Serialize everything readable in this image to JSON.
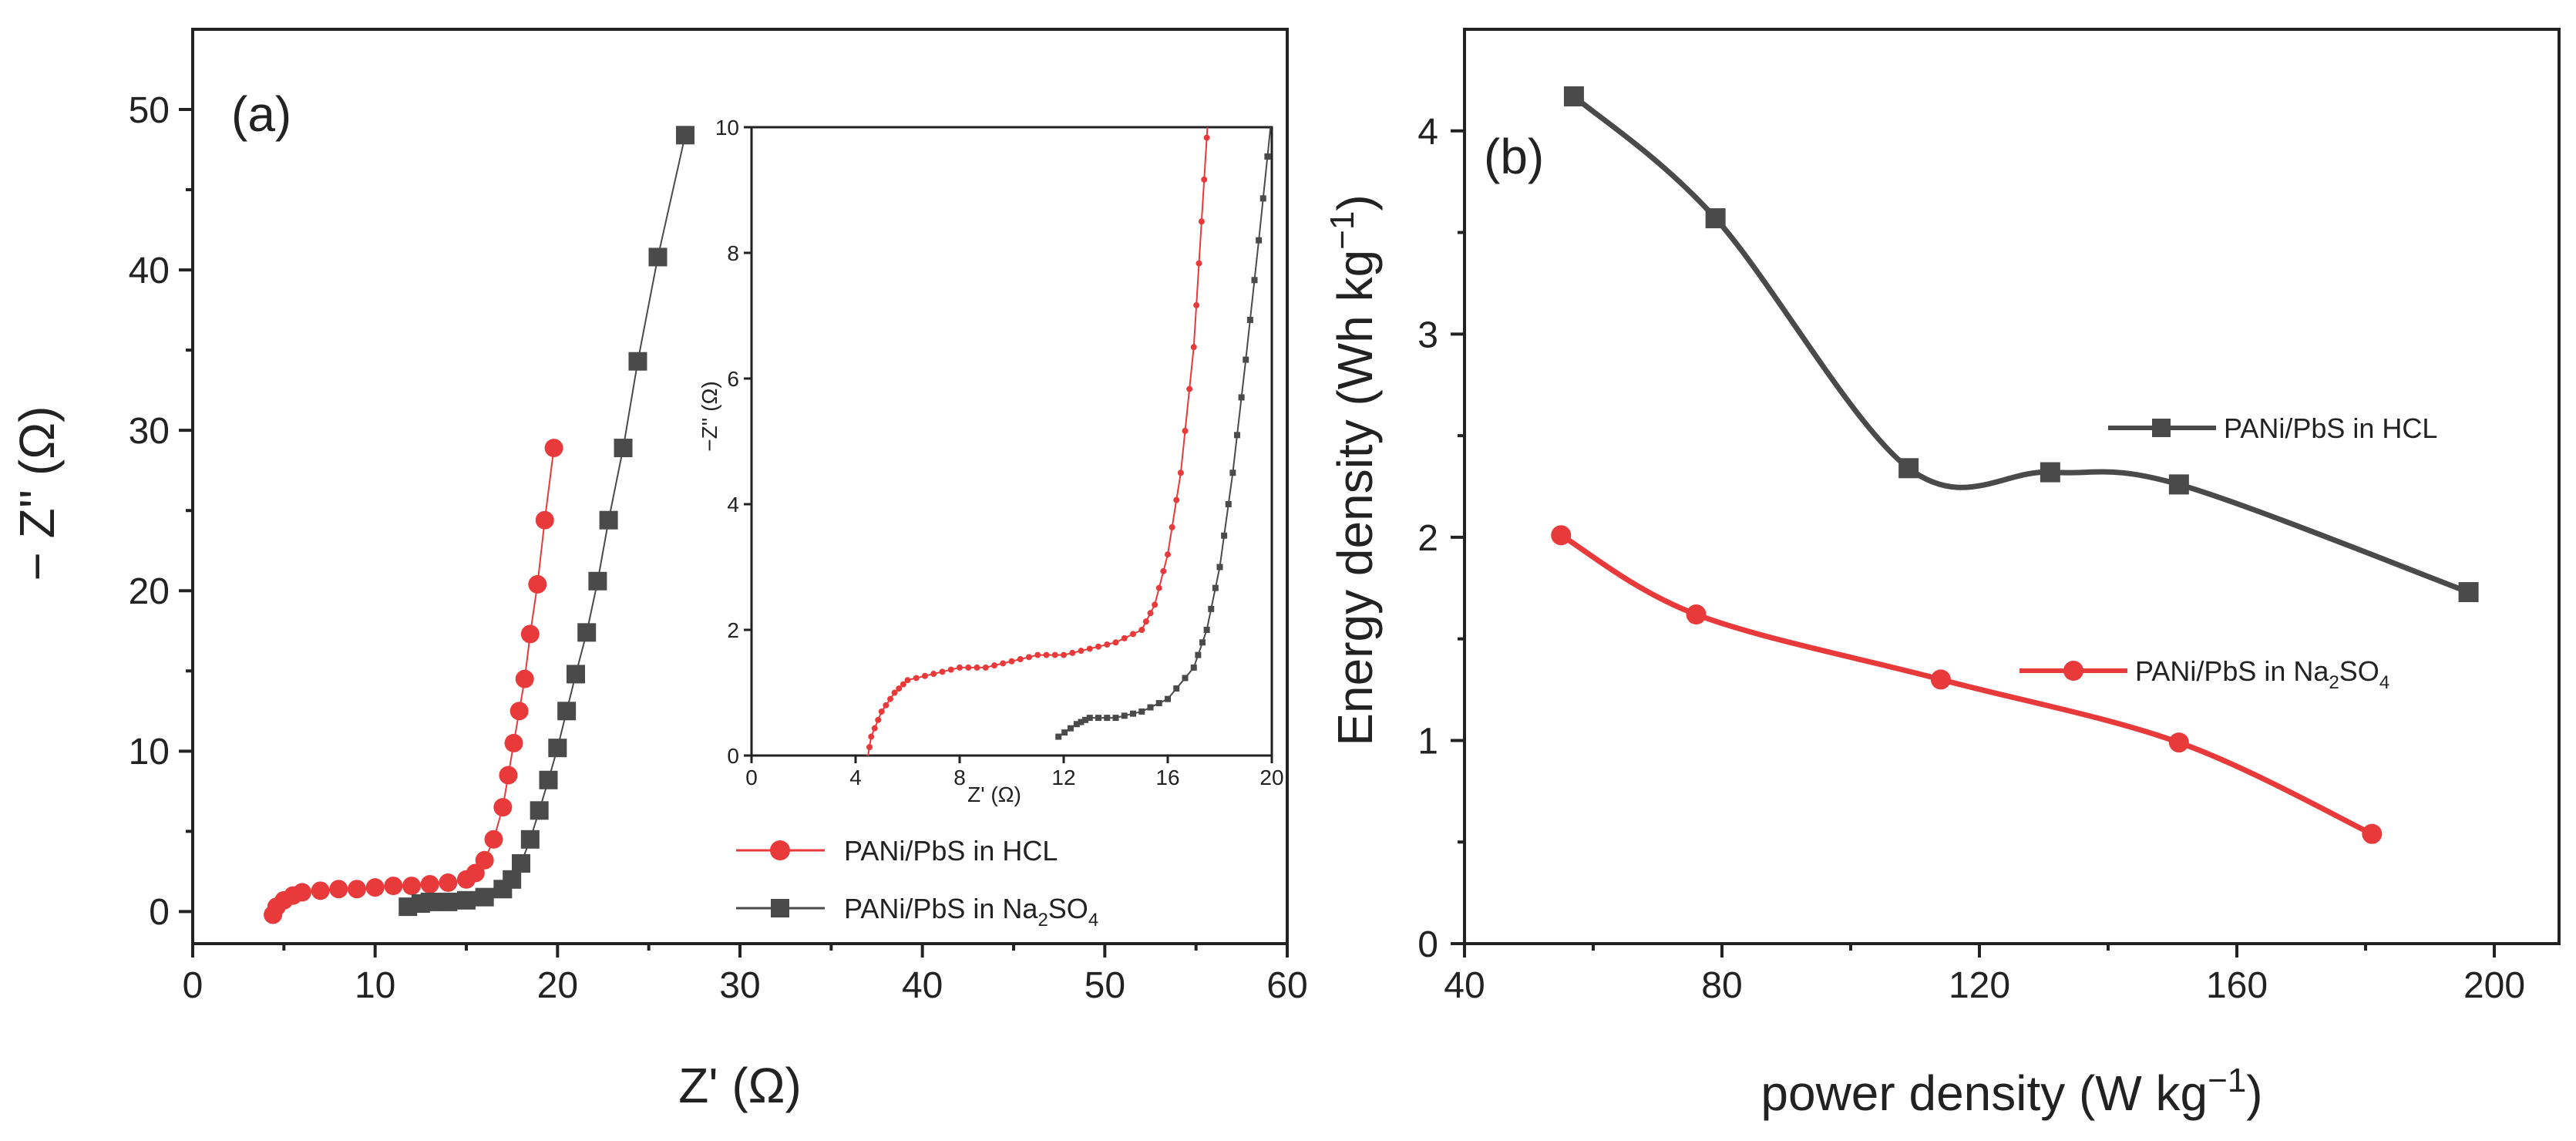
{
  "colors": {
    "red": "#e8393b",
    "gray": "#4a4a4a",
    "axis": "#222222"
  },
  "chart_data": [
    {
      "type": "scatter",
      "panel_label": "(a)",
      "xlabel": "Z' (Ω)",
      "ylabel": "− Z'' (Ω)",
      "xlim": [
        0,
        60
      ],
      "ylim": [
        -2,
        55
      ],
      "xticks": [
        0,
        10,
        20,
        30,
        40,
        50,
        60
      ],
      "yticks": [
        0,
        10,
        20,
        30,
        40,
        50
      ],
      "series": [
        {
          "name": "PANi/PbS in HCL",
          "legend_main": "PANi/PbS in HCL",
          "color": "#e8393b",
          "marker": "circle",
          "x": [
            4.4,
            4.6,
            5,
            5.5,
            6,
            7,
            8,
            9,
            10,
            11,
            12,
            13,
            14,
            15,
            15.5,
            16,
            16.5,
            17,
            17.3,
            17.6,
            17.9,
            18.2,
            18.5,
            18.9,
            19.3,
            19.8
          ],
          "y": [
            -0.2,
            0.3,
            0.7,
            1.0,
            1.2,
            1.3,
            1.4,
            1.4,
            1.5,
            1.6,
            1.6,
            1.7,
            1.8,
            2.0,
            2.4,
            3.2,
            4.5,
            6.5,
            8.5,
            10.5,
            12.5,
            14.5,
            17.3,
            20.4,
            24.4,
            28.9
          ]
        },
        {
          "name": "PANi/PbS in Na2SO4",
          "legend_main": "PANi/PbS in Na",
          "legend_sub1": "2",
          "legend_mid": "SO",
          "legend_sub2": "4",
          "color": "#4a4a4a",
          "marker": "square",
          "x": [
            11.8,
            12.5,
            13,
            14,
            15,
            16,
            17,
            17.5,
            18,
            18.5,
            19,
            19.5,
            20,
            20.5,
            21,
            21.6,
            22.2,
            22.8,
            23.6,
            24.4,
            25.5,
            27
          ],
          "y": [
            0.3,
            0.5,
            0.6,
            0.6,
            0.7,
            0.9,
            1.4,
            2.0,
            3.0,
            4.5,
            6.3,
            8.2,
            10.2,
            12.5,
            14.8,
            17.4,
            20.6,
            24.4,
            28.9,
            34.3,
            40.8,
            48.4
          ]
        }
      ],
      "inset": {
        "xlabel": "Z' (Ω)",
        "ylabel": "−Z'' (Ω)",
        "xlim": [
          0,
          20
        ],
        "ylim": [
          0,
          10
        ],
        "xticks": [
          0,
          4,
          8,
          12,
          16,
          20
        ],
        "yticks": [
          0,
          2,
          4,
          6,
          8,
          10
        ]
      }
    },
    {
      "type": "line",
      "panel_label": "(b)",
      "xlabel": "power density (W kg",
      "xlabel_sup": "−1",
      "xlabel_end": ")",
      "ylabel": "Energy density (Wh kg",
      "ylabel_sup": "−1",
      "ylabel_end": ")",
      "xlim": [
        40,
        210
      ],
      "ylim": [
        0,
        4.5
      ],
      "xticks": [
        40,
        80,
        120,
        160,
        200
      ],
      "yticks": [
        0,
        1,
        2,
        3,
        4
      ],
      "series": [
        {
          "name": "PANi/PbS in HCL",
          "legend_main": "PANi/PbS in HCL",
          "color": "#4a4a4a",
          "marker": "square",
          "x": [
            57,
            79,
            109,
            131,
            151,
            196
          ],
          "y": [
            4.17,
            3.57,
            2.34,
            2.32,
            2.26,
            1.73
          ]
        },
        {
          "name": "PANi/PbS in Na2SO4",
          "legend_main": "PANi/PbS in Na",
          "legend_sub1": "2",
          "legend_mid": "SO",
          "legend_sub2": "4",
          "color": "#e8393b",
          "marker": "circle",
          "x": [
            55,
            76,
            114,
            151,
            181
          ],
          "y": [
            2.01,
            1.62,
            1.3,
            0.99,
            0.54
          ]
        }
      ]
    }
  ]
}
